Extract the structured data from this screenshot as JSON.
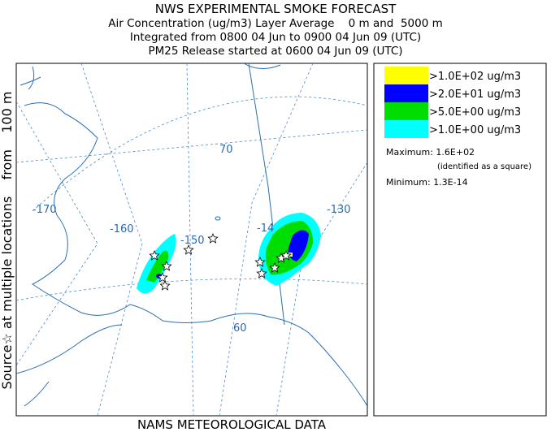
{
  "header": {
    "title": "NWS EXPERIMENTAL SMOKE FORECAST",
    "lines": [
      "Air Concentration (ug/m3) Layer Average    0 m and  5000 m",
      "Integrated from 0800 04 Jun to 0900 04 Jun 09 (UTC)",
      "PM25 Release started at 0600 04 Jun 09 (UTC)"
    ]
  },
  "side_label": "Source☆ at multiple locations    from    100 m",
  "footer": "NAMS METEOROLOGICAL DATA",
  "legend": {
    "entries": [
      {
        "label": ">1.0E+02 ug/m3",
        "color": "#ffff00"
      },
      {
        "label": ">2.0E+01 ug/m3",
        "color": "#0000ff"
      },
      {
        "label": ">5.0E+00 ug/m3",
        "color": "#00dd00"
      },
      {
        "label": ">1.0E+00 ug/m3",
        "color": "#00ffff"
      }
    ],
    "maximum": "Maximum: 1.6E+02",
    "max_note": "(identified as a square)",
    "minimum": "Minimum: 1.3E-14"
  },
  "map": {
    "labels": [
      "-170",
      "-160",
      "-150",
      "-14",
      "-130",
      "70",
      "60"
    ]
  }
}
